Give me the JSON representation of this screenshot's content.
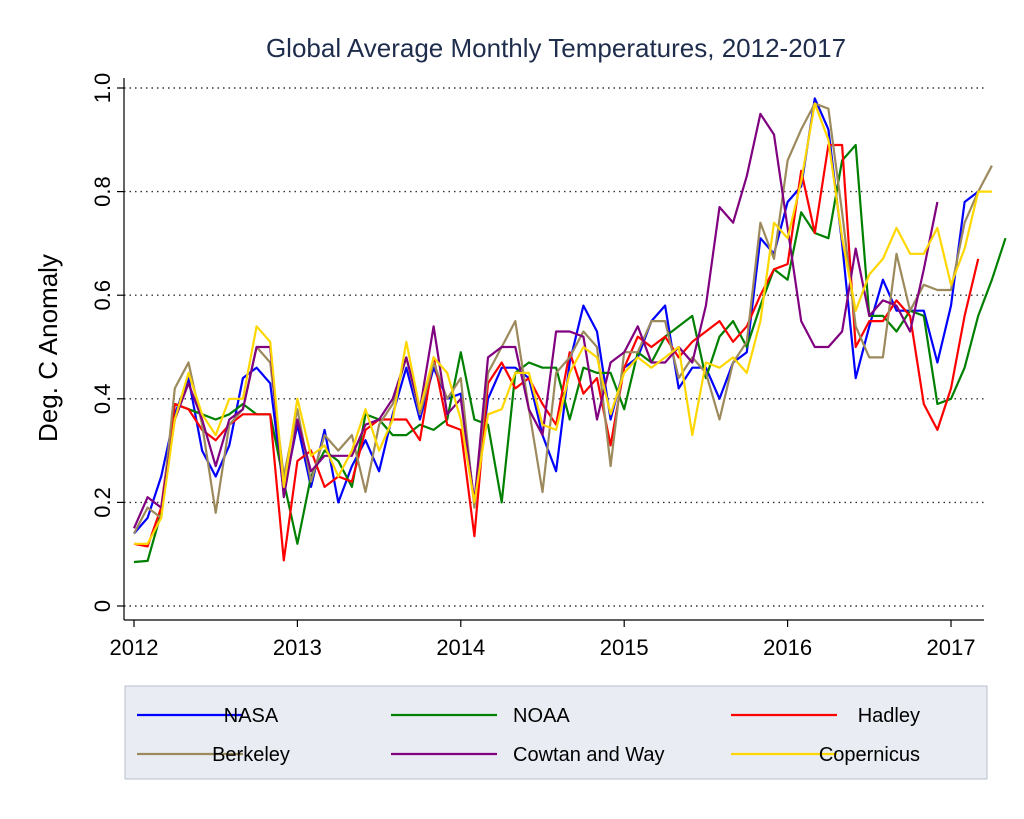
{
  "chart_data": {
    "type": "line",
    "title": "Global Average Monthly Temperatures, 2012-2017",
    "xlabel": "",
    "ylabel": "Deg. C Anomaly",
    "xlim": [
      2012,
      2017.25
    ],
    "ylim": [
      0,
      1.0
    ],
    "x_ticks": [
      "2012",
      "2013",
      "2014",
      "2015",
      "2016",
      "2017"
    ],
    "y_ticks": [
      "0",
      "0.2",
      "0.4",
      "0.6",
      "0.8",
      "1.0"
    ],
    "grid": "horizontal dotted",
    "legend_position": "bottom",
    "x_start": "2012-01",
    "series": [
      {
        "name": "NASA",
        "color": "#0000ff",
        "values": [
          0.14,
          0.17,
          0.25,
          0.37,
          0.44,
          0.3,
          0.25,
          0.31,
          0.44,
          0.46,
          0.43,
          0.22,
          0.35,
          0.23,
          0.34,
          0.2,
          0.27,
          0.32,
          0.26,
          0.37,
          0.46,
          0.36,
          0.46,
          0.4,
          0.41,
          0.2,
          0.4,
          0.46,
          0.46,
          0.44,
          0.33,
          0.26,
          0.47,
          0.58,
          0.53,
          0.36,
          0.46,
          0.48,
          0.55,
          0.58,
          0.42,
          0.46,
          0.46,
          0.4,
          0.47,
          0.49,
          0.71,
          0.68,
          0.78,
          0.81,
          0.98,
          0.92,
          0.7,
          0.44,
          0.54,
          0.63,
          0.57,
          0.57,
          0.57,
          0.47,
          0.58,
          0.78,
          0.8
        ]
      },
      {
        "name": "NOAA",
        "color": "#008000",
        "values": [
          0.085,
          0.087,
          0.18,
          0.39,
          0.38,
          0.37,
          0.36,
          0.37,
          0.39,
          0.37,
          0.37,
          0.24,
          0.12,
          0.25,
          0.3,
          0.28,
          0.23,
          0.37,
          0.36,
          0.33,
          0.33,
          0.35,
          0.34,
          0.36,
          0.49,
          0.36,
          0.35,
          0.2,
          0.45,
          0.47,
          0.46,
          0.46,
          0.36,
          0.46,
          0.45,
          0.45,
          0.38,
          0.49,
          0.47,
          0.52,
          0.54,
          0.56,
          0.44,
          0.52,
          0.55,
          0.5,
          0.58,
          0.65,
          0.63,
          0.76,
          0.72,
          0.71,
          0.86,
          0.89,
          0.56,
          0.56,
          0.53,
          0.57,
          0.56,
          0.39,
          0.4,
          0.46,
          0.56,
          0.63,
          0.71
        ]
      },
      {
        "name": "Hadley",
        "color": "#ff0000",
        "values": [
          0.12,
          0.115,
          0.19,
          0.39,
          0.38,
          0.34,
          0.32,
          0.35,
          0.37,
          0.37,
          0.37,
          0.088,
          0.28,
          0.3,
          0.23,
          0.25,
          0.24,
          0.34,
          0.36,
          0.36,
          0.36,
          0.32,
          0.48,
          0.35,
          0.34,
          0.135,
          0.43,
          0.47,
          0.42,
          0.44,
          0.39,
          0.35,
          0.49,
          0.41,
          0.44,
          0.31,
          0.46,
          0.52,
          0.5,
          0.52,
          0.48,
          0.51,
          0.53,
          0.55,
          0.51,
          0.54,
          0.6,
          0.65,
          0.66,
          0.84,
          0.72,
          0.89,
          0.89,
          0.5,
          0.55,
          0.55,
          0.59,
          0.56,
          0.39,
          0.34,
          0.42,
          0.56,
          0.67
        ]
      },
      {
        "name": "Berkeley",
        "color": "#9c8a5d",
        "values": [
          0.14,
          0.19,
          0.17,
          0.42,
          0.47,
          0.35,
          0.18,
          0.35,
          0.38,
          0.5,
          0.47,
          0.25,
          0.38,
          0.24,
          0.33,
          0.3,
          0.33,
          0.22,
          0.35,
          0.39,
          0.48,
          0.37,
          0.47,
          0.4,
          0.44,
          0.19,
          0.45,
          0.5,
          0.55,
          0.38,
          0.22,
          0.45,
          0.48,
          0.53,
          0.5,
          0.27,
          0.49,
          0.49,
          0.55,
          0.55,
          0.44,
          0.48,
          0.45,
          0.36,
          0.47,
          0.51,
          0.74,
          0.67,
          0.86,
          0.92,
          0.97,
          0.96,
          0.76,
          0.54,
          0.48,
          0.48,
          0.68,
          0.57,
          0.62,
          0.61,
          0.61,
          0.74,
          0.8,
          0.85
        ]
      },
      {
        "name": "Cowtan and Way",
        "color": "#800080",
        "values": [
          0.15,
          0.21,
          0.19,
          0.36,
          0.43,
          0.36,
          0.27,
          0.36,
          0.38,
          0.5,
          0.5,
          0.21,
          0.36,
          0.26,
          0.29,
          0.29,
          0.29,
          0.35,
          0.36,
          0.4,
          0.48,
          0.38,
          0.54,
          0.37,
          0.4,
          0.2,
          0.48,
          0.5,
          0.5,
          0.38,
          0.33,
          0.53,
          0.53,
          0.52,
          0.36,
          0.47,
          0.49,
          0.54,
          0.47,
          0.47,
          0.5,
          0.47,
          0.58,
          0.77,
          0.74,
          0.83,
          0.95,
          0.91,
          0.73,
          0.55,
          0.5,
          0.5,
          0.53,
          0.69,
          0.56,
          0.59,
          0.58,
          0.53,
          0.65,
          0.78
        ]
      },
      {
        "name": "Copernicus",
        "color": "#ffd700",
        "values": [
          0.12,
          0.12,
          0.17,
          0.36,
          0.45,
          0.37,
          0.33,
          0.4,
          0.4,
          0.54,
          0.51,
          0.23,
          0.4,
          0.29,
          0.31,
          0.25,
          0.3,
          0.38,
          0.3,
          0.36,
          0.51,
          0.38,
          0.48,
          0.45,
          0.36,
          0.2,
          0.37,
          0.38,
          0.45,
          0.45,
          0.35,
          0.34,
          0.45,
          0.5,
          0.48,
          0.37,
          0.45,
          0.48,
          0.46,
          0.48,
          0.5,
          0.33,
          0.47,
          0.46,
          0.48,
          0.45,
          0.55,
          0.74,
          0.71,
          0.82,
          0.97,
          0.9,
          0.71,
          0.57,
          0.64,
          0.67,
          0.73,
          0.68,
          0.68,
          0.73,
          0.62,
          0.69,
          0.8,
          0.8
        ]
      }
    ]
  }
}
